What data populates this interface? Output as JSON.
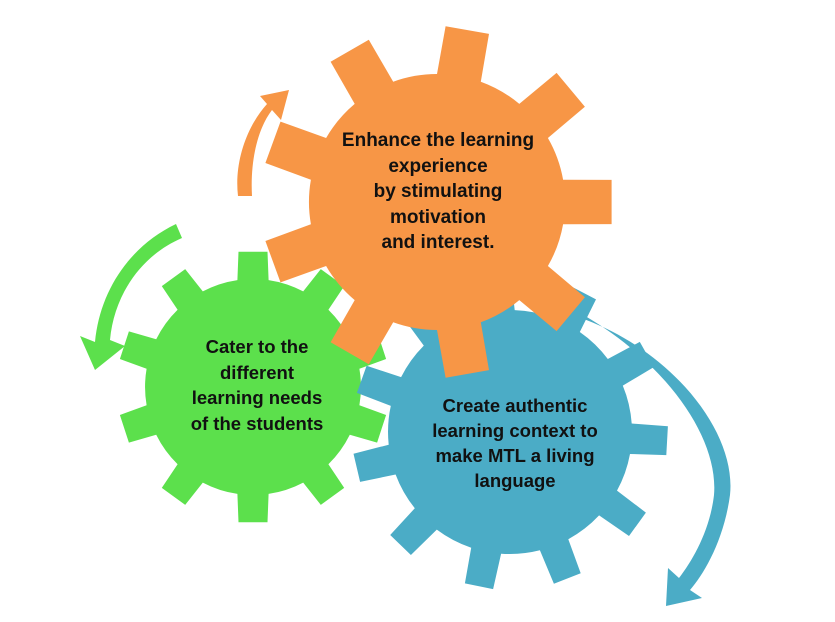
{
  "gears": {
    "orange": {
      "color": "#F79646",
      "lines": [
        "Enhance the learning",
        "experience",
        "by stimulating",
        "motivation",
        "and interest."
      ]
    },
    "green": {
      "color": "#5CE04C",
      "lines": [
        "Cater to the",
        "different",
        "learning needs",
        "of the students"
      ]
    },
    "blue": {
      "color": "#4BACC6",
      "lines": [
        "Create authentic",
        "learning context to",
        "make MTL a living",
        "language"
      ]
    }
  },
  "arrows": {
    "orange_arrow_color": "#F79646",
    "green_arrow_color": "#5CE04C",
    "blue_arrow_color": "#4BACC6"
  }
}
